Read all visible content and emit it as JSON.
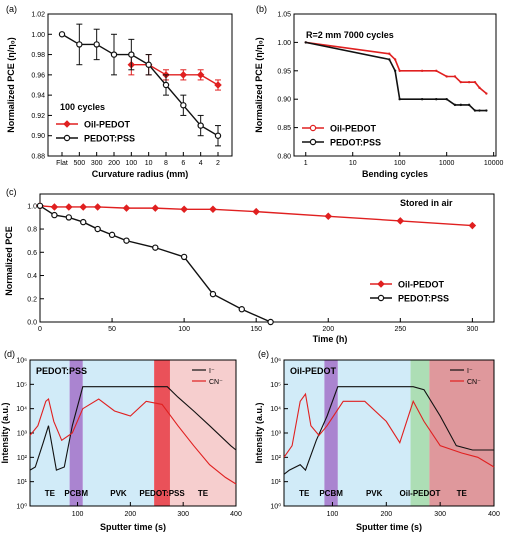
{
  "chart_data": [
    {
      "id": "a",
      "panel_label": "(a)",
      "type": "line",
      "xlabel": "Curvature radius (mm)",
      "ylabel": "Normalized PCE (η/η₀)",
      "x_ticks": [
        "Flat",
        "500",
        "300",
        "200",
        "100",
        "10",
        "8",
        "6",
        "4",
        "2"
      ],
      "y_ticks": [
        "0.88",
        "0.90",
        "0.92",
        "0.94",
        "0.96",
        "0.98",
        "1.00",
        "1.02"
      ],
      "ylim": [
        0.88,
        1.02
      ],
      "annotation": "100 cycles",
      "legend": "bottom-left",
      "series": [
        {
          "name": "Oil-PEDOT",
          "color": "#e02020",
          "x": [
            "100",
            "10",
            "8",
            "6",
            "4",
            "2"
          ],
          "values": [
            0.97,
            0.97,
            0.96,
            0.96,
            0.96,
            0.95
          ],
          "errors": [
            0.01,
            0.01,
            0.005,
            0.005,
            0.005,
            0.005
          ]
        },
        {
          "name": "PEDOT:PSS",
          "color": "#111111",
          "x": [
            "Flat",
            "500",
            "300",
            "200",
            "100",
            "10",
            "8",
            "6",
            "4",
            "2"
          ],
          "values": [
            1.0,
            0.99,
            0.99,
            0.98,
            0.98,
            0.97,
            0.95,
            0.93,
            0.91,
            0.9
          ],
          "errors": [
            0,
            0.02,
            0.015,
            0.02,
            0.015,
            0.01,
            0.01,
            0.01,
            0.01,
            0.01
          ]
        }
      ]
    },
    {
      "id": "b",
      "panel_label": "(b)",
      "type": "line",
      "xlabel": "Bending cycles",
      "ylabel": "Normalized PCE (η/η₀)",
      "xscale": "log",
      "xlim": [
        1,
        10000
      ],
      "x_ticks": [
        "1",
        "10",
        "100",
        "1000",
        "10000"
      ],
      "y_ticks": [
        "0.80",
        "0.85",
        "0.90",
        "0.95",
        "1.00",
        "1.05"
      ],
      "ylim": [
        0.8,
        1.05
      ],
      "annotation": "R=2 mm    7000 cycles",
      "legend": "bottom-left",
      "series": [
        {
          "name": "Oil-PEDOT",
          "color": "#e02020",
          "x": [
            1,
            60,
            80,
            100,
            300,
            600,
            1000,
            1500,
            2000,
            3000,
            4000,
            5000,
            7000
          ],
          "values": [
            1.0,
            0.98,
            0.97,
            0.95,
            0.95,
            0.95,
            0.94,
            0.94,
            0.93,
            0.93,
            0.93,
            0.92,
            0.91
          ]
        },
        {
          "name": "PEDOT:PSS",
          "color": "#111111",
          "x": [
            1,
            60,
            80,
            100,
            300,
            600,
            1000,
            1500,
            2000,
            3000,
            4000,
            5000,
            7000
          ],
          "values": [
            1.0,
            0.97,
            0.95,
            0.9,
            0.9,
            0.9,
            0.9,
            0.89,
            0.89,
            0.89,
            0.88,
            0.88,
            0.88
          ]
        }
      ]
    },
    {
      "id": "c",
      "panel_label": "(c)",
      "type": "line",
      "xlabel": "Time (h)",
      "ylabel": "Normalized PCE",
      "xlim": [
        0,
        300
      ],
      "ylim": [
        0,
        1.0
      ],
      "x_ticks": [
        "0",
        "50",
        "100",
        "150",
        "200",
        "250",
        "300"
      ],
      "y_ticks": [
        "0.0",
        "0.2",
        "0.4",
        "0.6",
        "0.8",
        "1.0"
      ],
      "annotation": "Stored in air",
      "legend": "bottom-right",
      "series": [
        {
          "name": "Oil-PEDOT",
          "color": "#e02020",
          "x": [
            0,
            10,
            20,
            30,
            40,
            60,
            80,
            100,
            120,
            150,
            200,
            250,
            300
          ],
          "values": [
            1.0,
            0.99,
            0.99,
            0.99,
            0.99,
            0.98,
            0.98,
            0.97,
            0.97,
            0.95,
            0.91,
            0.87,
            0.83
          ]
        },
        {
          "name": "PEDOT:PSS",
          "color": "#111111",
          "x": [
            0,
            10,
            20,
            30,
            40,
            50,
            60,
            80,
            100,
            120,
            140,
            160
          ],
          "values": [
            1.0,
            0.92,
            0.9,
            0.86,
            0.8,
            0.75,
            0.7,
            0.64,
            0.56,
            0.24,
            0.11,
            0.0
          ]
        }
      ]
    },
    {
      "id": "d",
      "panel_label": "(d)",
      "type": "line",
      "title": "PEDOT:PSS",
      "xlabel": "Sputter time (s)",
      "ylabel": "Intensity (a.u.)",
      "yscale": "log",
      "xlim": [
        10,
        400
      ],
      "ylim": [
        1,
        1000000
      ],
      "x_ticks": [
        "100",
        "200",
        "300",
        "400"
      ],
      "y_ticks": [
        "10⁰",
        "10¹",
        "10²",
        "10³",
        "10⁴",
        "10⁵",
        "10⁶"
      ],
      "bands": [
        {
          "label": "TE",
          "from": 10,
          "to": 85,
          "color": "#c9e8f7"
        },
        {
          "label": "PCBM",
          "from": 85,
          "to": 110,
          "color": "#9b6fc8"
        },
        {
          "label": "PVK",
          "from": 110,
          "to": 245,
          "color": "#c9e8f7"
        },
        {
          "label": "PEDOT:PSS",
          "from": 245,
          "to": 275,
          "color": "#e6323c"
        },
        {
          "label": "TE",
          "from": 275,
          "to": 400,
          "color": "#f4c6c6"
        }
      ],
      "series": [
        {
          "name": "I⁻",
          "color": "#111111",
          "x": [
            10,
            20,
            35,
            45,
            60,
            75,
            90,
            110,
            200,
            270,
            290,
            320,
            350,
            390,
            400
          ],
          "values": [
            30,
            40,
            400,
            2000,
            30,
            40,
            2000,
            80000,
            80000,
            80000,
            30000,
            8000,
            2000,
            300,
            200
          ]
        },
        {
          "name": "CN⁻",
          "color": "#e02020",
          "x": [
            10,
            25,
            40,
            45,
            55,
            70,
            90,
            110,
            140,
            170,
            200,
            230,
            260,
            290,
            320,
            350,
            380,
            400
          ],
          "values": [
            800,
            2000,
            20000,
            25000,
            3000,
            500,
            1000,
            10000,
            25000,
            8000,
            5000,
            20000,
            15000,
            2000,
            300,
            50,
            15,
            8
          ]
        }
      ],
      "legend": "top-right"
    },
    {
      "id": "e",
      "panel_label": "(e)",
      "type": "line",
      "title": "Oil-PEDOT",
      "xlabel": "Sputter time (s)",
      "ylabel": "Intensity (a.u.)",
      "yscale": "log",
      "xlim": [
        10,
        400
      ],
      "ylim": [
        1,
        1000000
      ],
      "x_ticks": [
        "100",
        "200",
        "300",
        "400"
      ],
      "y_ticks": [
        "10⁰",
        "10¹",
        "10²",
        "10³",
        "10⁴",
        "10⁵",
        "10⁶"
      ],
      "bands": [
        {
          "label": "TE",
          "from": 10,
          "to": 85,
          "color": "#c9e8f7"
        },
        {
          "label": "PCBM",
          "from": 85,
          "to": 110,
          "color": "#9b6fc8"
        },
        {
          "label": "PVK",
          "from": 110,
          "to": 245,
          "color": "#c9e8f7"
        },
        {
          "label": "Oil-PEDOT",
          "from": 245,
          "to": 280,
          "color": "#9fd8a8"
        },
        {
          "label": "TE",
          "from": 280,
          "to": 400,
          "color": "#d9868b"
        }
      ],
      "series": [
        {
          "name": "I⁻",
          "color": "#111111",
          "x": [
            10,
            20,
            40,
            50,
            70,
            90,
            110,
            250,
            270,
            300,
            330,
            360,
            400
          ],
          "values": [
            20,
            30,
            50,
            30,
            500,
            5000,
            80000,
            80000,
            60000,
            5000,
            300,
            200,
            200
          ]
        },
        {
          "name": "CN⁻",
          "color": "#e02020",
          "x": [
            10,
            25,
            40,
            50,
            60,
            75,
            90,
            120,
            160,
            200,
            225,
            250,
            270,
            300,
            340,
            370,
            400
          ],
          "values": [
            100,
            300,
            20000,
            40000,
            2000,
            800,
            2000,
            20000,
            20000,
            3000,
            400,
            20000,
            3000,
            300,
            150,
            100,
            40
          ]
        }
      ],
      "legend": "top-right"
    }
  ]
}
